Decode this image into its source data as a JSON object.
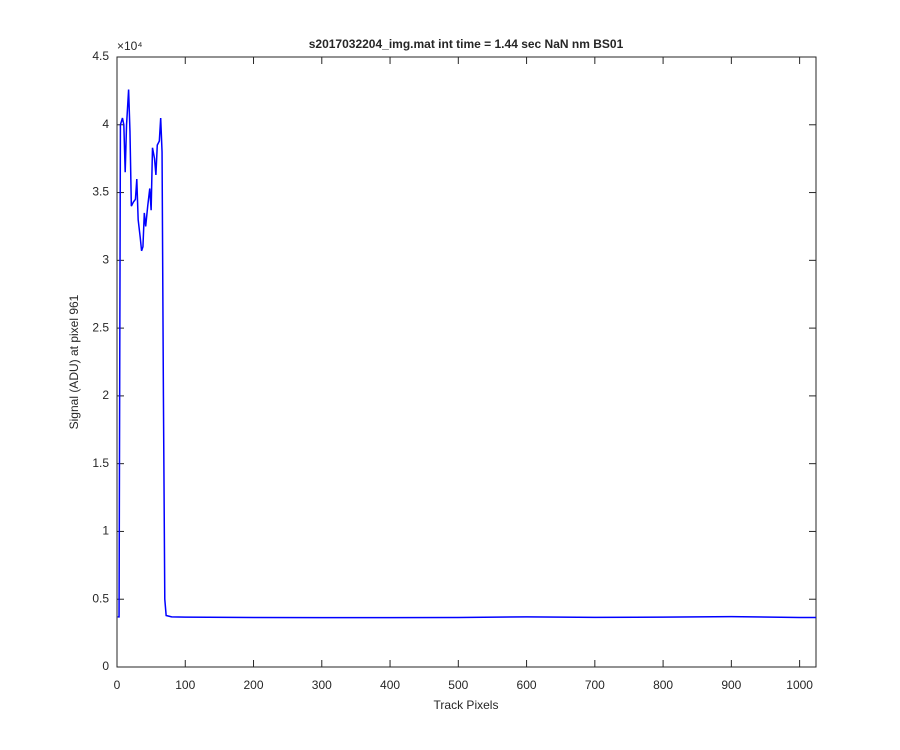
{
  "chart_data": {
    "type": "line",
    "title": "s2017032204_img.mat int time = 1.44 sec  NaN nm BS01",
    "x_label": "Track Pixels",
    "y_label": "Signal (ADU) at pixel 961",
    "y_exponent": "×10⁴",
    "x": [
      1,
      3,
      5,
      8,
      10,
      12,
      14,
      17,
      19,
      21,
      24,
      27,
      29,
      31,
      34,
      36,
      38,
      40,
      42,
      45,
      48,
      50,
      52,
      55,
      57,
      59,
      62,
      64,
      66,
      68,
      70,
      72,
      80,
      100,
      200,
      300,
      400,
      500,
      600,
      700,
      800,
      900,
      1000,
      1024
    ],
    "series": [
      {
        "name": "signal",
        "color": "#0000ff",
        "values": [
          3700,
          3700,
          40000,
          40500,
          40000,
          36500,
          40000,
          42600,
          39500,
          34000,
          34300,
          34500,
          36000,
          33000,
          31700,
          30700,
          31000,
          33500,
          32500,
          34000,
          35300,
          33700,
          38300,
          37500,
          36300,
          38500,
          38800,
          40500,
          38000,
          20000,
          5000,
          3800,
          3700,
          3680,
          3650,
          3640,
          3640,
          3650,
          3700,
          3660,
          3680,
          3720,
          3650,
          3650
        ]
      }
    ],
    "xlim": [
      0,
      1024
    ],
    "xticks": [
      0,
      100,
      200,
      300,
      400,
      500,
      600,
      700,
      800,
      900,
      1000
    ],
    "ylim": [
      0,
      45000
    ],
    "yticks": [
      0,
      {
        "value": 5000,
        "label": "0.5"
      },
      {
        "value": 10000,
        "label": "1"
      },
      {
        "value": 15000,
        "label": "1.5"
      },
      {
        "value": 20000,
        "label": "2"
      },
      {
        "value": 25000,
        "label": "2.5"
      },
      {
        "value": 30000,
        "label": "3"
      },
      {
        "value": 35000,
        "label": "3.5"
      },
      {
        "value": 40000,
        "label": "4"
      },
      {
        "value": 45000,
        "label": "4.5"
      }
    ],
    "grid": false
  }
}
